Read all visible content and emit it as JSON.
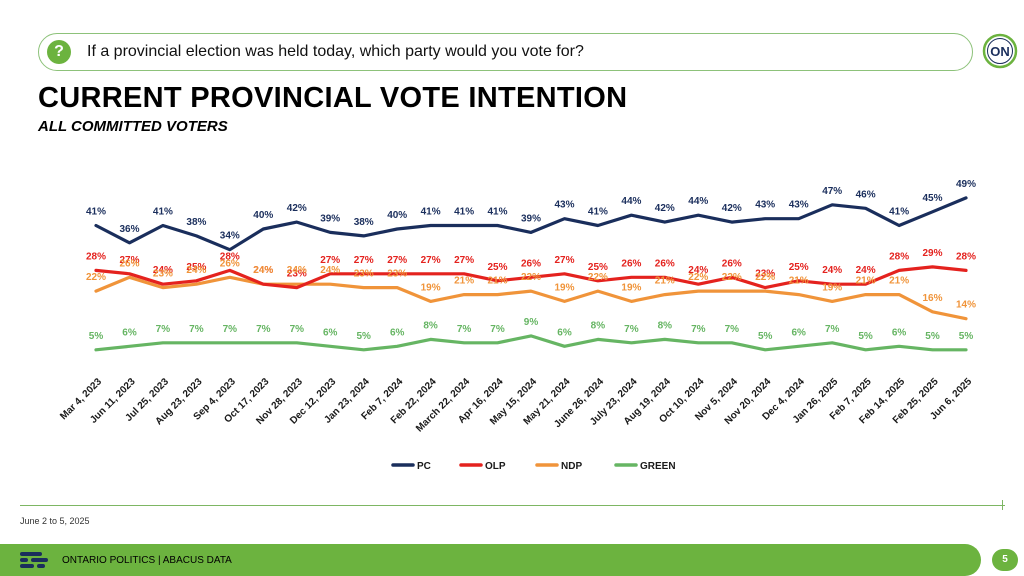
{
  "question": {
    "icon": "question-icon",
    "text": "If a provincial election was held today, which party would you vote for?"
  },
  "logo": {
    "icon": "ontario-logo-icon",
    "text": "ON"
  },
  "title": "CURRENT PROVINCIAL VOTE INTENTION",
  "subtitle": "ALL COMMITTED VOTERS",
  "date_note": "June 2 to 5, 2025",
  "footer": {
    "icon": "abacus-logo-icon",
    "text": "ONTARIO POLITICS | ABACUS DATA",
    "page_number": "5"
  },
  "colors": {
    "accent": "#6cb33f",
    "pc": "#1a2e5c",
    "olp": "#e4221e",
    "ndp": "#f0943a",
    "green": "#66b563"
  },
  "chart_data": {
    "type": "line",
    "title": "",
    "xlabel": "",
    "ylabel": "",
    "grid": false,
    "legend_position": "bottom",
    "categories": [
      "Mar 4, 2023",
      "Jun 11, 2023",
      "Jul 25, 2023",
      "Aug 23, 2023",
      "Sep 4, 2023",
      "Oct 17, 2023",
      "Nov 28, 2023",
      "Dec 12, 2023",
      "Jan 23, 2024",
      "Feb 7, 2024",
      "Feb 22, 2024",
      "March 22, 2024",
      "Apr 16, 2024",
      "May 15, 2024",
      "May 21, 2024",
      "June 26, 2024",
      "July 23, 2024",
      "Aug 19, 2024",
      "Oct 10, 2024",
      "Nov 5, 2024",
      "Nov 20, 2024",
      "Dec 4, 2024",
      "Jan 26, 2025",
      "Feb 7, 2025",
      "Feb 14, 2025",
      "Feb 25, 2025",
      "Jun 6, 2025"
    ],
    "x_dates": [
      "2023-03-04",
      "2023-06-11",
      "2023-07-25",
      "2023-08-23",
      "2023-09-04",
      "2023-10-17",
      "2023-11-28",
      "2023-12-12",
      "2024-01-23",
      "2024-02-07",
      "2024-02-22",
      "2024-03-22",
      "2024-04-16",
      "2024-05-15",
      "2024-05-21",
      "2024-06-26",
      "2024-07-23",
      "2024-08-19",
      "2024-10-10",
      "2024-11-05",
      "2024-11-20",
      "2024-12-04",
      "2025-01-26",
      "2025-02-07",
      "2025-02-14",
      "2025-02-25",
      "2025-06-06"
    ],
    "series": [
      {
        "name": "PC",
        "color": "#1a2e5c",
        "values": [
          41,
          36,
          41,
          38,
          34,
          40,
          42,
          39,
          38,
          40,
          41,
          41,
          41,
          39,
          43,
          41,
          44,
          42,
          44,
          42,
          43,
          43,
          47,
          46,
          41,
          45,
          49
        ]
      },
      {
        "name": "OLP",
        "color": "#e4221e",
        "values": [
          28,
          27,
          24,
          25,
          28,
          24,
          23,
          27,
          27,
          27,
          27,
          27,
          25,
          26,
          27,
          25,
          26,
          26,
          24,
          26,
          23,
          25,
          24,
          24,
          28,
          29,
          28
        ]
      },
      {
        "name": "NDP",
        "color": "#f0943a",
        "values": [
          22,
          26,
          23,
          24,
          26,
          24,
          24,
          24,
          23,
          23,
          19,
          21,
          21,
          22,
          19,
          22,
          19,
          21,
          22,
          22,
          22,
          21,
          19,
          21,
          21,
          16,
          14
        ]
      },
      {
        "name": "GREEN",
        "color": "#66b563",
        "values": [
          5,
          6,
          7,
          7,
          7,
          7,
          7,
          6,
          5,
          6,
          8,
          7,
          7,
          9,
          6,
          8,
          7,
          8,
          7,
          7,
          5,
          6,
          7,
          5,
          6,
          5,
          5
        ]
      }
    ],
    "data_labels": true,
    "value_format": "percent"
  }
}
